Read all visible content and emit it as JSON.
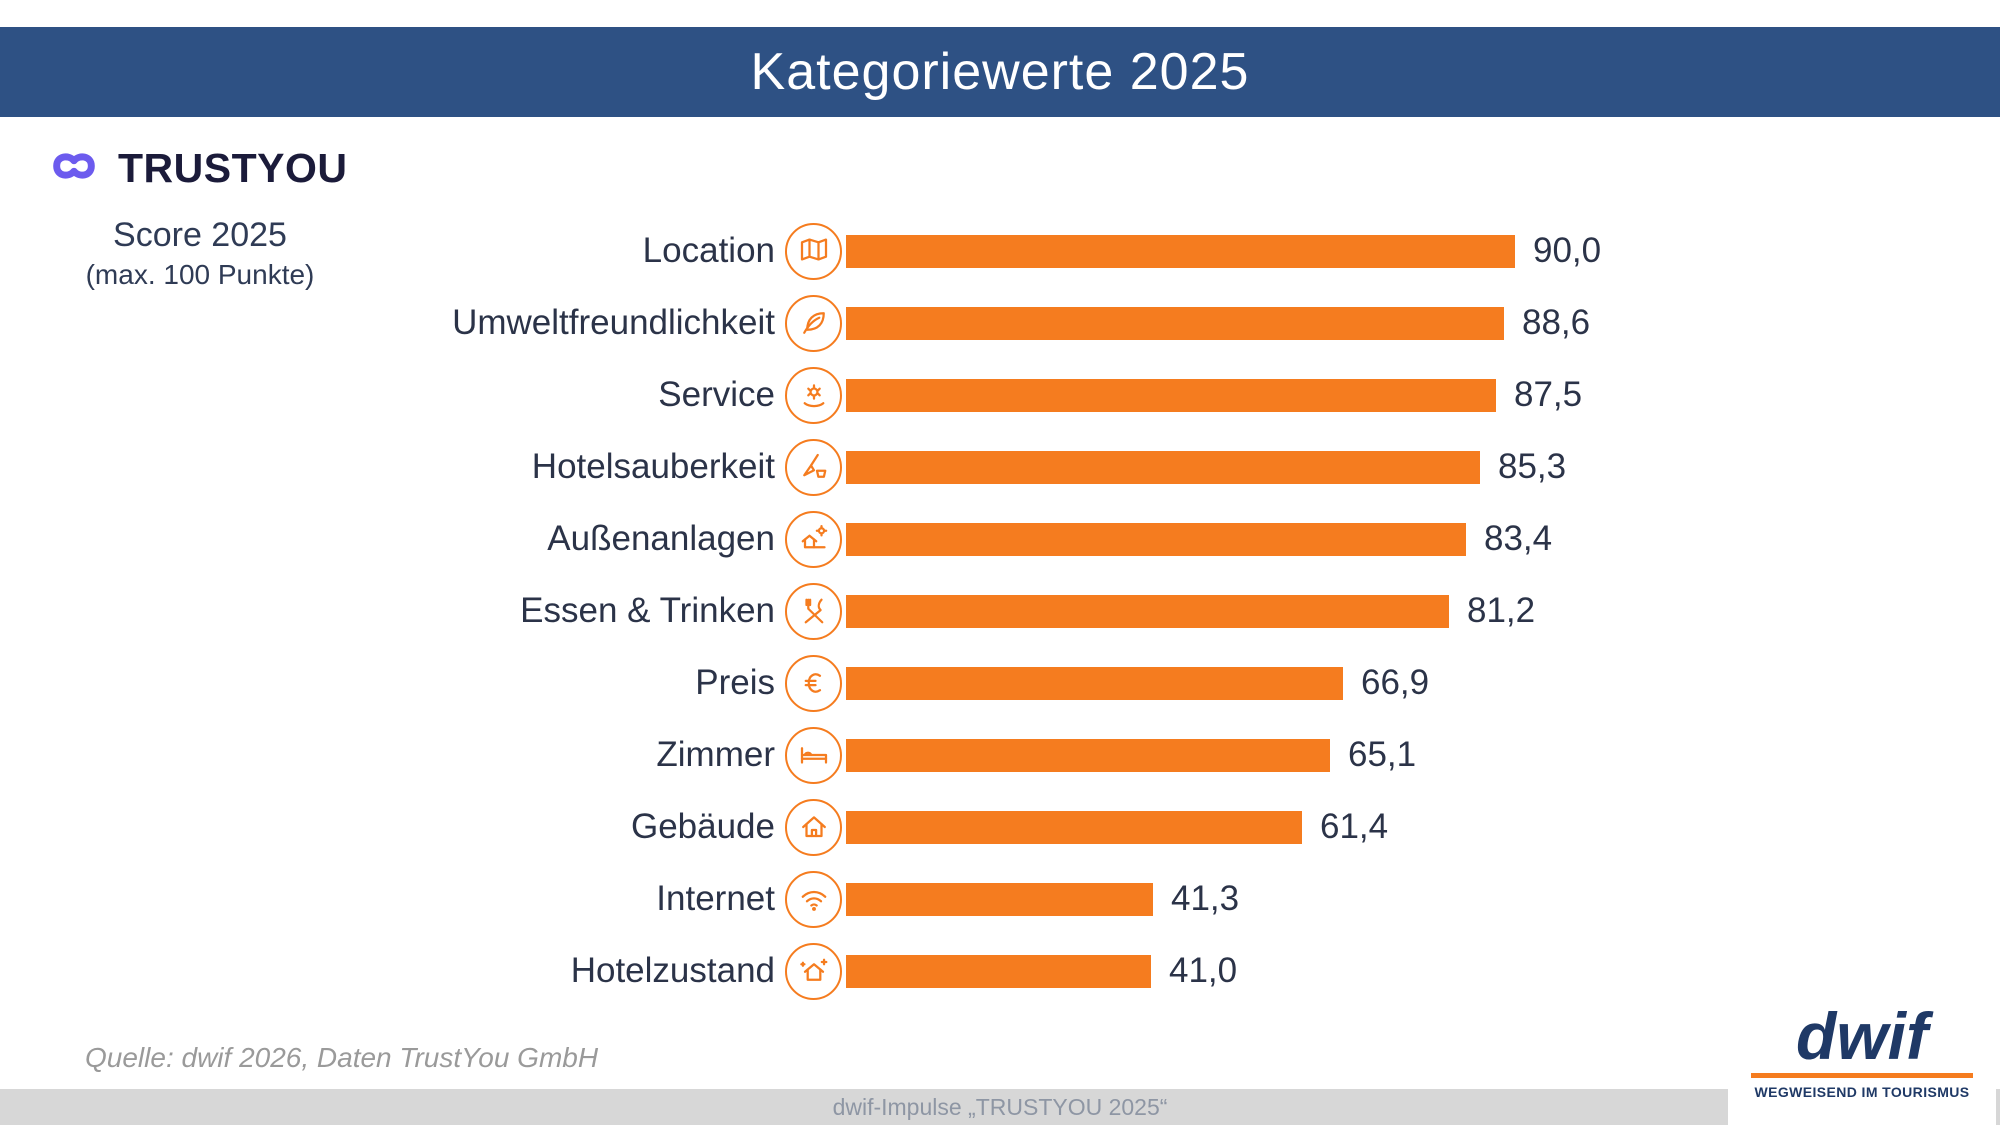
{
  "header": {
    "title": "Kategoriewerte 2025"
  },
  "brand": {
    "name": "TRUSTYOU"
  },
  "score_note": {
    "line1": "Score 2025",
    "line2": "(max. 100 Punkte)"
  },
  "chart_data": {
    "type": "bar",
    "orientation": "horizontal",
    "title": "Kategoriewerte 2025",
    "value_axis_max": 100,
    "unit": "Punkte",
    "grid": false,
    "legend_position": "none",
    "categories": [
      "Location",
      "Umweltfreundlichkeit",
      "Service",
      "Hotelsauberkeit",
      "Außenanlagen",
      "Essen & Trinken",
      "Preis",
      "Zimmer",
      "Gebäude",
      "Internet",
      "Hotelzustand"
    ],
    "values": [
      90.0,
      88.6,
      87.5,
      85.3,
      83.4,
      81.2,
      66.9,
      65.1,
      61.4,
      41.3,
      41.0
    ],
    "value_labels": [
      "90,0",
      "88,6",
      "87,5",
      "85,3",
      "83,4",
      "81,2",
      "66,9",
      "65,1",
      "61,4",
      "41,3",
      "41,0"
    ],
    "icons": [
      "map-location-icon",
      "eco-leaf-icon",
      "service-gear-icon",
      "cleaning-broom-icon",
      "outdoor-facilities-icon",
      "food-drink-icon",
      "price-euro-icon",
      "room-bed-icon",
      "building-house-icon",
      "internet-wifi-icon",
      "hotel-condition-icon"
    ],
    "bar_color": "#F57C1F"
  },
  "footer": {
    "source": "Quelle: dwif 2026, Daten TrustYou GmbH",
    "strip_text": "dwif-Impulse „TRUSTYOU 2025“",
    "dwif_logo_text": "dwif",
    "dwif_tagline": "WEGWEISEND IM TOURISMUS"
  },
  "colors": {
    "header_bg": "#2E5184",
    "bar_orange": "#F57C1F",
    "text_navy": "#2B3348",
    "trustyou_purple": "#6C5BEE",
    "dwif_navy": "#1F3966",
    "footer_strip_bg": "#D7D7D7"
  }
}
